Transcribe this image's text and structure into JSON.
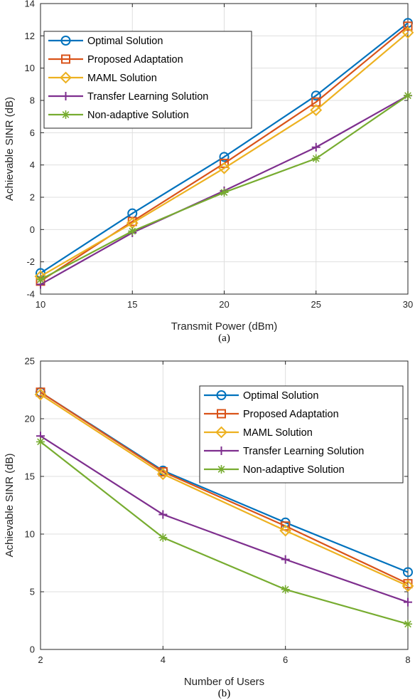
{
  "chart_data": [
    {
      "type": "line",
      "caption": "(a)",
      "xlabel": "Transmit Power (dBm)",
      "ylabel": "Achievable SINR (dB)",
      "x": [
        10,
        15,
        20,
        25,
        30
      ],
      "xlim": [
        10,
        30
      ],
      "ylim": [
        -4,
        14
      ],
      "xticks": [
        10,
        15,
        20,
        25,
        30
      ],
      "yticks": [
        -4,
        -2,
        0,
        2,
        4,
        6,
        8,
        10,
        12,
        14
      ],
      "grid": true,
      "legend_position": "top-left",
      "series": [
        {
          "name": "Optimal Solution",
          "values": [
            -2.7,
            1.0,
            4.5,
            8.3,
            12.8
          ],
          "color": "#0072BD",
          "marker": "circle"
        },
        {
          "name": "Proposed Adaptation",
          "values": [
            -3.2,
            0.5,
            4.1,
            7.9,
            12.6
          ],
          "color": "#D95319",
          "marker": "square"
        },
        {
          "name": "MAML Solution",
          "values": [
            -2.9,
            0.4,
            3.8,
            7.4,
            12.2
          ],
          "color": "#EDB120",
          "marker": "diamond"
        },
        {
          "name": "Transfer Learning Solution",
          "values": [
            -3.4,
            -0.2,
            2.4,
            5.1,
            8.3
          ],
          "color": "#7E2F8E",
          "marker": "plus"
        },
        {
          "name": "Non-adaptive Solution",
          "values": [
            -3.1,
            -0.1,
            2.3,
            4.4,
            8.3
          ],
          "color": "#77AC30",
          "marker": "asterisk"
        }
      ]
    },
    {
      "type": "line",
      "caption": "(b)",
      "xlabel": "Number of Users",
      "ylabel": "Achievable SINR (dB)",
      "x": [
        2,
        4,
        6,
        8
      ],
      "xlim": [
        2,
        8
      ],
      "ylim": [
        0,
        25
      ],
      "xticks": [
        2,
        4,
        6,
        8
      ],
      "yticks": [
        0,
        5,
        10,
        15,
        20,
        25
      ],
      "grid": true,
      "legend_position": "top-right",
      "series": [
        {
          "name": "Optimal Solution",
          "values": [
            22.3,
            15.5,
            11.0,
            6.7
          ],
          "color": "#0072BD",
          "marker": "circle"
        },
        {
          "name": "Proposed Adaptation",
          "values": [
            22.3,
            15.4,
            10.7,
            5.7
          ],
          "color": "#D95319",
          "marker": "square"
        },
        {
          "name": "MAML Solution",
          "values": [
            22.1,
            15.2,
            10.3,
            5.5
          ],
          "color": "#EDB120",
          "marker": "diamond"
        },
        {
          "name": "Transfer Learning Solution",
          "values": [
            18.5,
            11.7,
            7.8,
            4.1
          ],
          "color": "#7E2F8E",
          "marker": "plus"
        },
        {
          "name": "Non-adaptive Solution",
          "values": [
            18.0,
            9.7,
            5.2,
            2.2
          ],
          "color": "#77AC30",
          "marker": "asterisk"
        }
      ]
    }
  ]
}
